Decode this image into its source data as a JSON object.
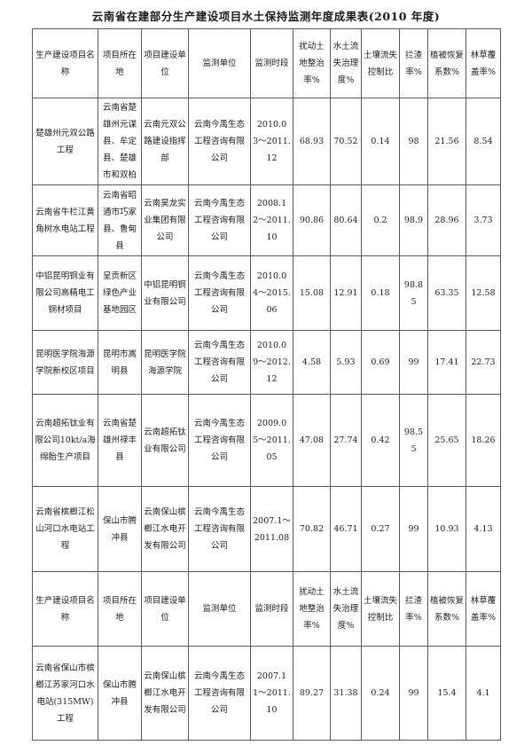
{
  "title": "云南省在建部分生产建设项目水土保持监测年度成果表(2010 年度)",
  "table": {
    "columns": [
      "生产建设项目名称",
      "项目所在地",
      "项目建设单位",
      "监测单位",
      "监测时段",
      "扰动土地整治率%",
      "水土流失治理度%",
      "土壤流失控制比",
      "拦渣率%",
      "植被恢复系数%",
      "林草覆盖率%"
    ],
    "body": [
      {
        "kind": "data",
        "cells": [
          "楚雄州元双公路工程",
          "云南省楚雄州元谋县、牟定县、楚雄市和双柏",
          "云南元双公路建设指挥部",
          "云南今禹生态工程咨询有限公司",
          "2010.03〜2011.12",
          "68.93",
          "70.52",
          "0.14",
          "98",
          "21.56",
          "8.54"
        ]
      },
      {
        "kind": "data",
        "cells": [
          "云南省牛栏江黄角树水电站工程",
          "云南省昭通市巧家县、鲁甸县",
          "云南昊龙实业集团有限公司",
          "云南今禹生态工程咨询有限公司",
          "2008.12〜2011.10",
          "90.86",
          "80.64",
          "0.2",
          "98.9",
          "28.96",
          "3.73"
        ]
      },
      {
        "kind": "data",
        "cells": [
          "中铝昆明铜业有限公司高精电工铜材项目",
          "呈贡新区绿色产业基地园区",
          "中铝昆明铜业有限公司",
          "云南今禹生态工程咨询有限公司",
          "2010.04〜2015.06",
          "15.08",
          "12.91",
          "0.18",
          "98.85",
          "63.35",
          "12.58"
        ]
      },
      {
        "kind": "data",
        "cells": [
          "昆明医学院海源学院新校区项目",
          "昆明市嵩明县",
          "昆明医学院海源学院",
          "云南今禹生态工程咨询有限公司",
          "2010.09〜2012.12",
          "4.58",
          "5.93",
          "0.69",
          "99",
          "17.41",
          "22.73"
        ]
      },
      {
        "kind": "data",
        "cells": [
          "云南超拓钛业有限公司10kt/a海绵胎生产项目",
          "云南省楚雄州禄丰县",
          "云南超拓钛业有限公司",
          "云南今禹生态工程咨询有限公司",
          "2009.05〜2011.05",
          "47.08",
          "27.74",
          "0.42",
          "98.55",
          "25.65",
          "18.26"
        ]
      },
      {
        "kind": "data",
        "cells": [
          "云南省槟榔江松山河口水电站工程",
          "保山市腾冲县",
          "云南保山槟榔江水电开发有限公司",
          "云南今禹生态工程咨询有限公司",
          "2007.1〜2011.08",
          "70.82",
          "46.71",
          "0.27",
          "99",
          "10.93",
          "4.13"
        ]
      },
      {
        "kind": "header"
      },
      {
        "kind": "data",
        "cells": [
          "云南省保山市槟榔江苏家河口水电站(315MW)工程",
          "保山市腾冲县",
          "云南保山槟榔江水电开发有限公司",
          "云南今禹生态工程咨询有限公司",
          "2007.11〜2011.10",
          "89.27",
          "31.38",
          "0.24",
          "99",
          "15.4",
          "4.1"
        ]
      }
    ]
  }
}
